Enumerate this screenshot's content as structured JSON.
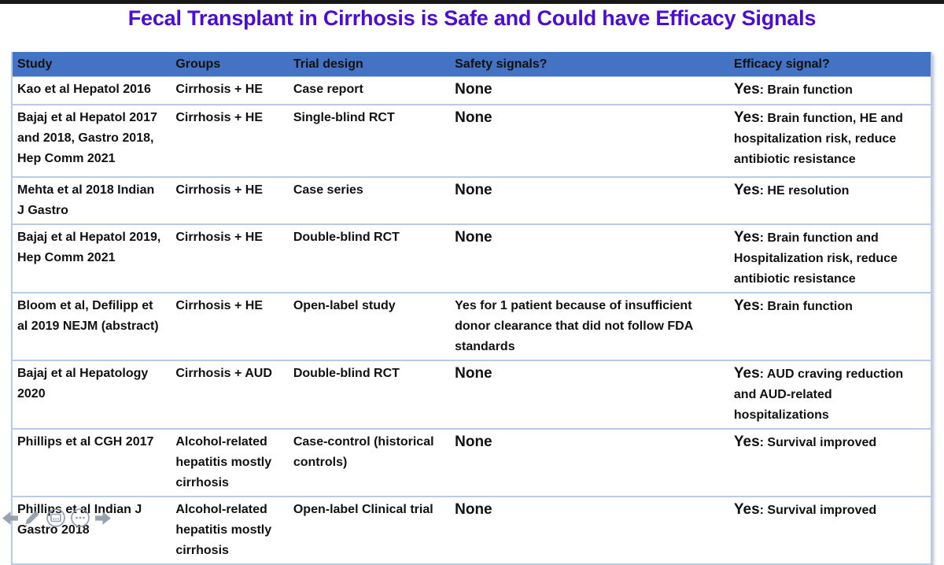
{
  "title": "Fecal Transplant in Cirrhosis is Safe and Could have Efficacy Signals",
  "colors": {
    "title_text": "#4D0CD6",
    "header_bg": "#4472C4",
    "header_text": "#FFFFFF",
    "row_border": "#B9CBE9",
    "body_text": "#111111",
    "top_bar": "#181818",
    "controls_gray": "#8D96A4"
  },
  "table": {
    "headers": [
      "Study",
      "Groups",
      "Trial design",
      "Safety signals?",
      "Efficacy signal?"
    ],
    "rows": [
      {
        "study": "Kao et al Hepatol 2016",
        "groups": "Cirrhosis + HE",
        "design": "Case report",
        "safety": "None",
        "efficacy_lead": "Yes",
        "efficacy_rest": ": Brain function"
      },
      {
        "study": "Bajaj et al Hepatol 2017 and 2018, Gastro 2018, Hep Comm 2021",
        "groups": "Cirrhosis + HE",
        "design": "Single-blind RCT",
        "safety": "None",
        "efficacy_lead": "Yes",
        "efficacy_rest": ": Brain function, HE and hospitalization risk, reduce antibiotic resistance"
      },
      {
        "study": "Mehta et al 2018 Indian J Gastro",
        "groups": "Cirrhosis + HE",
        "design": "Case series",
        "safety": "None",
        "efficacy_lead": "Yes",
        "efficacy_rest": ": HE resolution"
      },
      {
        "study": "Bajaj et al Hepatol 2019, Hep Comm 2021",
        "groups": "Cirrhosis + HE",
        "design": "Double-blind RCT",
        "safety": "None",
        "efficacy_lead": "Yes",
        "efficacy_rest": ": Brain function and Hospitalization risk, reduce antibiotic resistance"
      },
      {
        "study": "Bloom et al, Defilipp et al 2019 NEJM (abstract)",
        "groups": "Cirrhosis + HE",
        "design": "Open-label study",
        "safety": "Yes for 1 patient because of insufficient donor clearance that did not follow FDA standards",
        "efficacy_lead": "Yes",
        "efficacy_rest": ": Brain function"
      },
      {
        "study": "Bajaj et al Hepatology 2020",
        "groups": "Cirrhosis + AUD",
        "design": "Double-blind RCT",
        "safety": "None",
        "efficacy_lead": "Yes",
        "efficacy_rest": ": AUD craving reduction and AUD-related hospitalizations"
      },
      {
        "study": "Phillips et al CGH 2017",
        "groups": "Alcohol-related hepatitis mostly cirrhosis",
        "design": "Case-control (historical controls)",
        "safety": "None",
        "efficacy_lead": "Yes",
        "efficacy_rest": ": Survival improved"
      },
      {
        "study": "Phillips et al Indian J Gastro 2018",
        "groups": "Alcohol-related hepatitis mostly cirrhosis",
        "design": "Open-label Clinical trial",
        "safety": "None",
        "efficacy_lead": "Yes",
        "efficacy_rest": ": Survival improved"
      }
    ]
  },
  "presenter_controls": {
    "icons": [
      "previous-slide-arrow-icon",
      "pen-annotation-icon",
      "see-all-slides-icon",
      "more-options-icon",
      "next-slide-arrow-icon"
    ]
  }
}
